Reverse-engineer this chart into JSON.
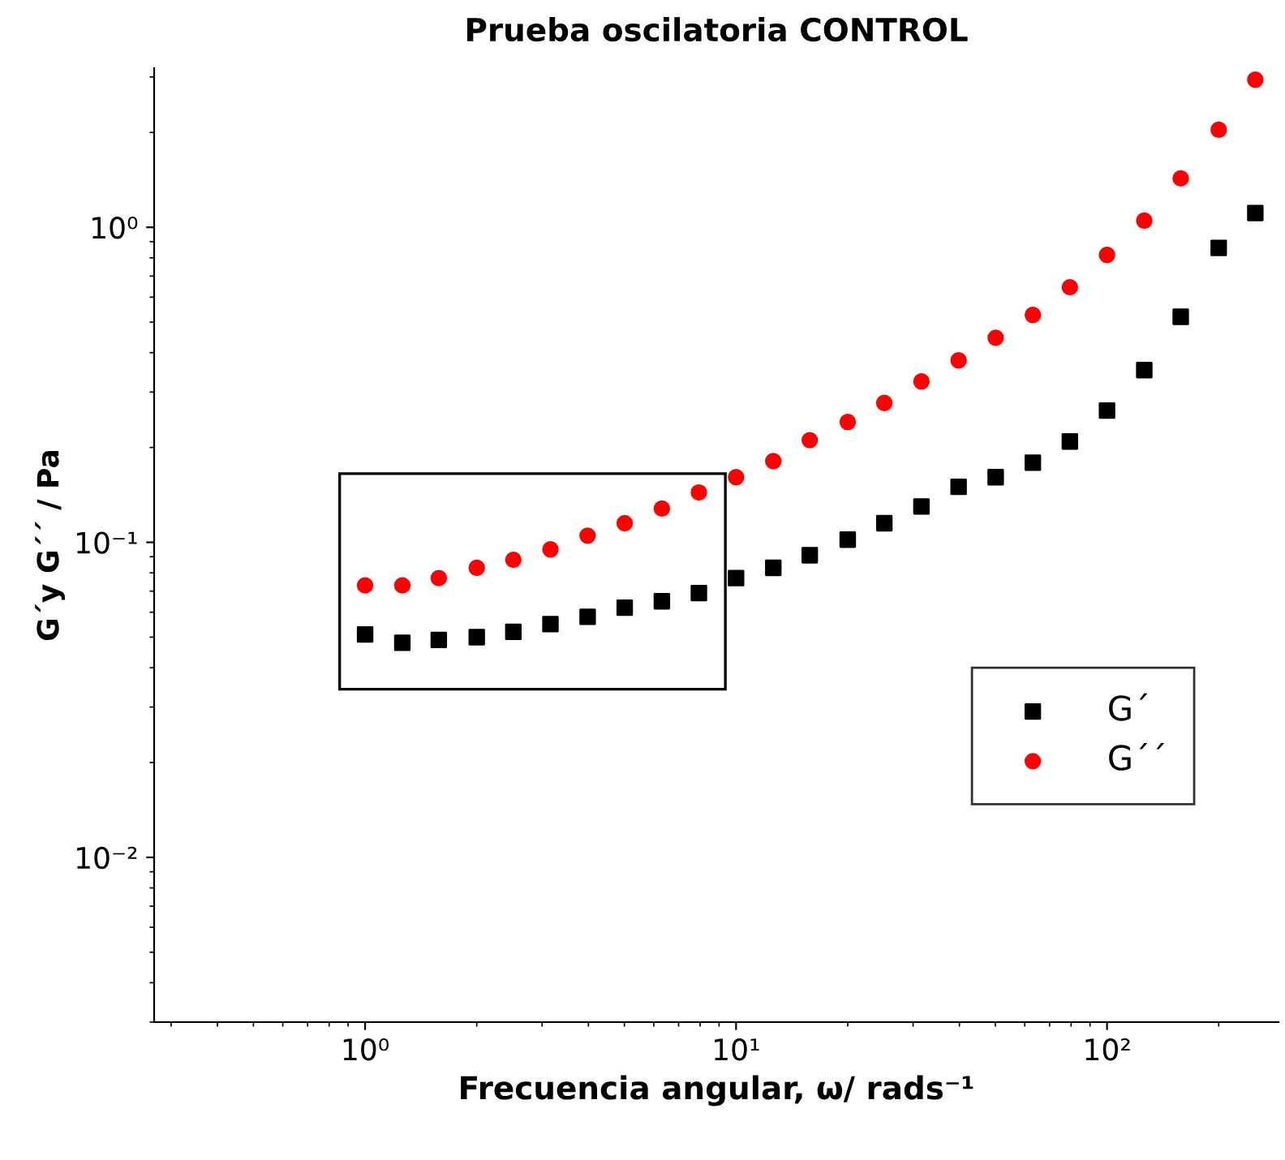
{
  "chart_data": {
    "type": "scatter",
    "title": "Prueba oscilatoria CONTROL",
    "xlabel": "Frecuencia angular, ω/ rads⁻¹",
    "ylabel": "G´y G´´ / Pa",
    "log": "xy",
    "x": [
      1,
      1.26,
      1.58,
      2,
      2.51,
      3.16,
      3.98,
      5.01,
      6.31,
      7.94,
      10,
      12.6,
      15.8,
      20,
      25.1,
      31.6,
      39.8,
      50.1,
      63.1,
      79.4,
      100,
      126,
      158,
      200,
      251
    ],
    "series": [
      {
        "name": "G´",
        "color": "#000000",
        "marker": "square",
        "values": [
          0.051,
          0.048,
          0.049,
          0.05,
          0.052,
          0.055,
          0.058,
          0.062,
          0.065,
          0.069,
          0.077,
          0.083,
          0.091,
          0.102,
          0.115,
          0.13,
          0.15,
          0.161,
          0.179,
          0.209,
          0.262,
          0.352,
          0.52,
          0.86,
          1.11
        ]
      },
      {
        "name": "G´´",
        "color": "#ff0000",
        "marker": "circle",
        "values": [
          0.073,
          0.073,
          0.077,
          0.083,
          0.088,
          0.095,
          0.105,
          0.115,
          0.128,
          0.144,
          0.161,
          0.181,
          0.211,
          0.241,
          0.277,
          0.324,
          0.378,
          0.446,
          0.527,
          0.645,
          0.817,
          1.05,
          1.43,
          2.04,
          2.94
        ]
      }
    ],
    "xlim": [
      0.27,
      290
    ],
    "ylim": [
      0.003,
      3.2
    ],
    "xticks": [
      {
        "value": 1,
        "label": "10⁰"
      },
      {
        "value": 10,
        "label": "10¹"
      },
      {
        "value": 100,
        "label": "10²"
      }
    ],
    "yticks": [
      {
        "value": 0.01,
        "label": "10⁻²"
      },
      {
        "value": 0.1,
        "label": "10⁻¹"
      },
      {
        "value": 1,
        "label": "10⁰"
      }
    ],
    "grid": false,
    "legend": "right"
  }
}
